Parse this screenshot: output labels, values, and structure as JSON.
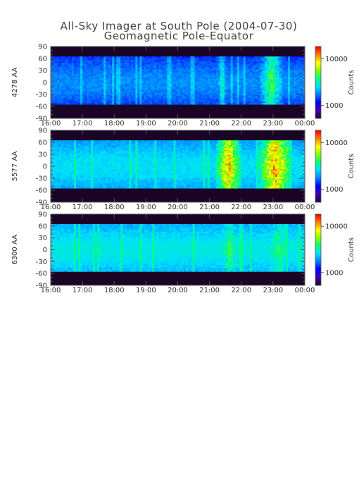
{
  "chart_data": {
    "type": "heatmap",
    "title": "All-Sky Imager at South Pole (2004-07-30)",
    "subtitle": "Geomagnetic Pole-Equator",
    "x_ticks": [
      "16:00",
      "17:00",
      "18:00",
      "19:00",
      "20:00",
      "21:00",
      "22:00",
      "23:00",
      "00:00"
    ],
    "y_ticks": [
      "90",
      "60",
      "30",
      "0",
      "-30",
      "-60",
      "-90"
    ],
    "y_tick_values": [
      90,
      60,
      30,
      0,
      -30,
      -60,
      -90
    ],
    "ylim": [
      -90,
      90
    ],
    "x_range_hours": [
      16,
      24
    ],
    "colorbar": {
      "label": "Counts",
      "scale": "log",
      "ticks": [
        "10000",
        "1000"
      ],
      "colors": [
        "#200038",
        "#4000b0",
        "#0000ff",
        "#0080ff",
        "#00e0ff",
        "#00ff80",
        "#80ff00",
        "#ffff00",
        "#ff8000",
        "#ff0000"
      ]
    },
    "panels": [
      {
        "ylabel": "4278 AA",
        "colorbar_ticks": [
          "10000",
          "1000"
        ],
        "valid_lat": [
          -55,
          65
        ],
        "base_level": 0.3,
        "activity": [
          {
            "t0": 21.25,
            "t1": 21.55,
            "peak": 0.62
          },
          {
            "t0": 22.6,
            "t1": 23.3,
            "peak": 0.72
          }
        ]
      },
      {
        "ylabel": "5577 AA",
        "colorbar_ticks": [
          "10000",
          "1000"
        ],
        "valid_lat": [
          -55,
          65
        ],
        "base_level": 0.4,
        "activity": [
          {
            "t0": 17.8,
            "t1": 18.1,
            "peak": 0.52
          },
          {
            "t0": 21.2,
            "t1": 22.0,
            "peak": 0.96
          },
          {
            "t0": 22.55,
            "t1": 23.6,
            "peak": 1.0
          }
        ]
      },
      {
        "ylabel": "6300 AA",
        "colorbar_ticks": [
          "10000",
          "1000"
        ],
        "valid_lat": [
          -55,
          65
        ],
        "base_level": 0.42,
        "activity": [
          {
            "t0": 16.3,
            "t1": 16.8,
            "peak": 0.52
          },
          {
            "t0": 21.2,
            "t1": 22.1,
            "peak": 0.68
          },
          {
            "t0": 22.6,
            "t1": 23.8,
            "peak": 0.66
          }
        ]
      }
    ]
  }
}
